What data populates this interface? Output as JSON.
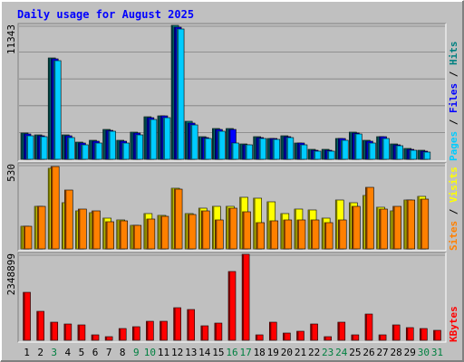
{
  "title": "Daily usage for August 2025",
  "colors": {
    "background": "#c0c0c0",
    "border_light": "#ffffff",
    "border_dark": "#808080",
    "title": "#0000ff",
    "hits": "#008080",
    "files": "#0000ff",
    "pages": "#00ccff",
    "visits": "#ffff00",
    "sites": "#ff8000",
    "kbytes": "#ff0000",
    "weekday_label": "#000000",
    "weekend_label": "#008040"
  },
  "chart_data": [
    {
      "type": "bar",
      "name": "hits-files-pages",
      "max_label": "11343",
      "ymax": 11343,
      "right_labels": [
        {
          "text": "Pages",
          "color_key": "pages"
        },
        {
          "text": " / ",
          "color_key": "weekday_label"
        },
        {
          "text": "Files",
          "color_key": "files"
        },
        {
          "text": " / ",
          "color_key": "weekday_label"
        },
        {
          "text": "Hits",
          "color_key": "hits"
        }
      ],
      "series": [
        {
          "name": "Hits",
          "color_key": "hits",
          "values": [
            2200,
            2050,
            8550,
            2100,
            1450,
            1600,
            2500,
            1600,
            2300,
            3600,
            3700,
            11343,
            3200,
            1900,
            2600,
            2600,
            1300,
            1900,
            1800,
            2000,
            1400,
            850,
            850,
            1800,
            2300,
            1600,
            1950,
            1300,
            900,
            750,
            0
          ]
        },
        {
          "name": "Files",
          "color_key": "files",
          "values": [
            2150,
            2000,
            8500,
            2000,
            1350,
            1550,
            2450,
            1550,
            2250,
            3550,
            3650,
            11200,
            3100,
            1850,
            2550,
            2550,
            1250,
            1850,
            1750,
            1950,
            1350,
            800,
            800,
            1750,
            2250,
            1550,
            1900,
            1250,
            850,
            700,
            0
          ]
        },
        {
          "name": "Pages",
          "color_key": "pages",
          "values": [
            2000,
            1900,
            8350,
            1850,
            1200,
            1400,
            2350,
            1400,
            2100,
            3400,
            3500,
            11050,
            2950,
            1750,
            2400,
            1350,
            1200,
            1750,
            1700,
            1850,
            1250,
            700,
            700,
            1600,
            2150,
            1400,
            1800,
            1150,
            750,
            650,
            0
          ]
        }
      ]
    },
    {
      "type": "bar",
      "name": "visits-sites",
      "max_label": "530",
      "ymax": 530,
      "right_labels": [
        {
          "text": "Sites",
          "color_key": "sites"
        },
        {
          "text": " / ",
          "color_key": "weekday_label"
        },
        {
          "text": "Visits",
          "color_key": "visits"
        }
      ],
      "series": [
        {
          "name": "Visits",
          "color_key": "visits",
          "values": [
            145,
            270,
            510,
            290,
            240,
            230,
            195,
            185,
            150,
            220,
            210,
            380,
            220,
            255,
            270,
            270,
            325,
            320,
            295,
            225,
            250,
            245,
            195,
            305,
            290,
            335,
            260,
            240,
            310,
            330,
            0
          ]
        },
        {
          "name": "Sites",
          "color_key": "sites",
          "values": [
            145,
            270,
            520,
            370,
            250,
            240,
            170,
            175,
            150,
            190,
            205,
            375,
            215,
            240,
            185,
            255,
            235,
            165,
            175,
            180,
            180,
            180,
            165,
            180,
            265,
            390,
            250,
            265,
            310,
            315,
            0
          ]
        }
      ]
    },
    {
      "type": "bar",
      "name": "kbytes",
      "max_label": "2348899",
      "ymax": 2348899,
      "right_labels": [
        {
          "text": "KBytes",
          "color_key": "kbytes"
        }
      ],
      "series": [
        {
          "name": "KBytes",
          "color_key": "kbytes",
          "values": [
            1310000,
            800000,
            500000,
            450000,
            430000,
            160000,
            100000,
            320000,
            380000,
            510000,
            510000,
            900000,
            850000,
            400000,
            470000,
            1880000,
            2348899,
            140000,
            500000,
            200000,
            250000,
            450000,
            90000,
            500000,
            150000,
            710000,
            150000,
            420000,
            350000,
            310000,
            280000
          ]
        }
      ]
    }
  ],
  "x_axis": {
    "days": [
      "1",
      "2",
      "3",
      "4",
      "5",
      "6",
      "7",
      "8",
      "9",
      "10",
      "11",
      "12",
      "13",
      "14",
      "15",
      "16",
      "17",
      "18",
      "19",
      "20",
      "21",
      "22",
      "23",
      "24",
      "25",
      "26",
      "27",
      "28",
      "29",
      "30",
      "31"
    ],
    "weekend_days": [
      "3",
      "9",
      "10",
      "16",
      "17",
      "23",
      "24",
      "30",
      "31"
    ]
  }
}
